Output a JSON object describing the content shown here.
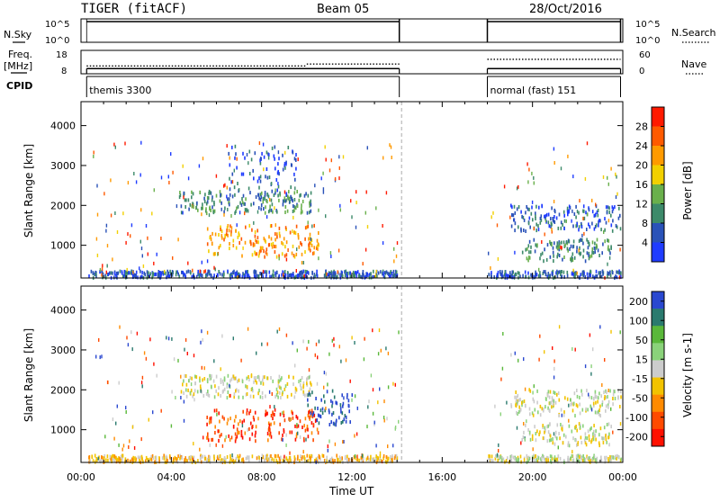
{
  "header": {
    "title": "TIGER (fitACF)",
    "beam": "Beam 05",
    "date": "28/Oct/2016"
  },
  "left_labels": {
    "nsky": "N.Sky",
    "freq_line1": "Freq.",
    "freq_line2": "[MHz]",
    "cpid": "CPID"
  },
  "right_labels": {
    "nsearch": "N.Search",
    "nave": "Nave"
  },
  "colors": {
    "power": [
      "#1f3cff",
      "#2a52b8",
      "#3d8a6a",
      "#6ab04c",
      "#f2d000",
      "#ff9a00",
      "#ff5a00",
      "#ff1a00"
    ],
    "velocity": [
      "#2a48d0",
      "#2a7a6e",
      "#5ab83a",
      "#8ad27a",
      "#cccccc",
      "#f2c300",
      "#ff8a00",
      "#ff4a00",
      "#ff1000"
    ],
    "grid_line": "#aaaaaa"
  },
  "chart_data": [
    {
      "type": "line",
      "title": "N.Sky / N.Search",
      "yticks": [
        "10^5",
        "10^0"
      ],
      "yticks_right": [
        "10^5",
        "10^0"
      ],
      "segments": [
        {
          "x_start": 0.25,
          "x_end": 14.1,
          "y": 100000
        },
        {
          "x_start": 18.0,
          "x_end": 23.9,
          "y": 100000
        }
      ]
    },
    {
      "type": "line",
      "title": "Freq / Nave",
      "ylabel_left": "Freq. [MHz]",
      "ylabel_right": "Nave",
      "yticks_left": [
        18,
        8
      ],
      "yticks_right": [
        60,
        0
      ],
      "freq_segments": [
        {
          "x_start": 0.25,
          "x_end": 14.1,
          "value": 10.2
        },
        {
          "x_start": 18.0,
          "x_end": 23.9,
          "value": 10.2
        }
      ],
      "nave_segments": [
        {
          "x_start": 0.25,
          "x_end": 10.0,
          "value": 20
        },
        {
          "x_start": 10.0,
          "x_end": 14.1,
          "value": 25
        },
        {
          "x_start": 18.0,
          "x_end": 23.9,
          "value": 37
        }
      ]
    },
    {
      "type": "table",
      "title": "CPID",
      "entries": [
        {
          "x_start": 0.25,
          "x_end": 14.1,
          "label": "themis 3300"
        },
        {
          "x_start": 18.0,
          "x_end": 23.9,
          "label": "normal (fast) 151"
        }
      ]
    },
    {
      "type": "heatmap",
      "parameter": "Power",
      "ylabel": "Slant Range [km]",
      "yticks": [
        1000,
        2000,
        3000,
        4000
      ],
      "ylim": [
        180,
        4600
      ],
      "xlim": [
        0,
        24
      ],
      "colorbar_label": "Power [dB]",
      "colorbar_ticks": [
        4,
        8,
        12,
        16,
        20,
        24,
        28
      ],
      "colorbar_range": [
        0,
        32
      ],
      "bands": [
        {
          "t0": 0.3,
          "t1": 14.0,
          "r0": 180,
          "r1": 350,
          "level": 1
        },
        {
          "t0": 4.3,
          "t1": 10.2,
          "r0": 1800,
          "r1": 2350,
          "level": 2
        },
        {
          "t0": 5.5,
          "t1": 10.5,
          "r0": 700,
          "r1": 1500,
          "level": 5
        },
        {
          "t0": 6.5,
          "t1": 9.5,
          "r0": 2200,
          "r1": 3500,
          "level": 1
        },
        {
          "t0": 18.0,
          "t1": 23.9,
          "r0": 180,
          "r1": 350,
          "level": 1
        },
        {
          "t0": 19.0,
          "t1": 23.9,
          "r0": 1350,
          "r1": 2000,
          "level": 1
        },
        {
          "t0": 19.5,
          "t1": 23.5,
          "r0": 600,
          "r1": 1150,
          "level": 2
        }
      ]
    },
    {
      "type": "heatmap",
      "parameter": "Velocity",
      "ylabel": "Slant Range [km]",
      "xlabel": "Time UT",
      "yticks": [
        1000,
        2000,
        3000,
        4000
      ],
      "ylim": [
        180,
        4600
      ],
      "xlim": [
        0,
        24
      ],
      "xticks": [
        "00:00",
        "04:00",
        "08:00",
        "12:00",
        "16:00",
        "20:00",
        "00:00"
      ],
      "colorbar_label": "Velocity [m s-1]",
      "colorbar_ticks": [
        200,
        100,
        50,
        15,
        -15,
        -50,
        -100,
        -200
      ],
      "bands": [
        {
          "t0": 0.3,
          "t1": 14.0,
          "r0": 180,
          "r1": 350,
          "level": 5
        },
        {
          "t0": 4.3,
          "t1": 10.2,
          "r0": 1800,
          "r1": 2350,
          "level": 4
        },
        {
          "t0": 5.5,
          "t1": 10.5,
          "r0": 700,
          "r1": 1500,
          "level": 7
        },
        {
          "t0": 10.0,
          "t1": 12.0,
          "r0": 1100,
          "r1": 2000,
          "level": 0
        },
        {
          "t0": 18.0,
          "t1": 23.9,
          "r0": 180,
          "r1": 350,
          "level": 4
        },
        {
          "t0": 19.0,
          "t1": 23.9,
          "r0": 1350,
          "r1": 2000,
          "level": 4
        },
        {
          "t0": 19.5,
          "t1": 23.5,
          "r0": 600,
          "r1": 1150,
          "level": 4
        }
      ]
    }
  ]
}
